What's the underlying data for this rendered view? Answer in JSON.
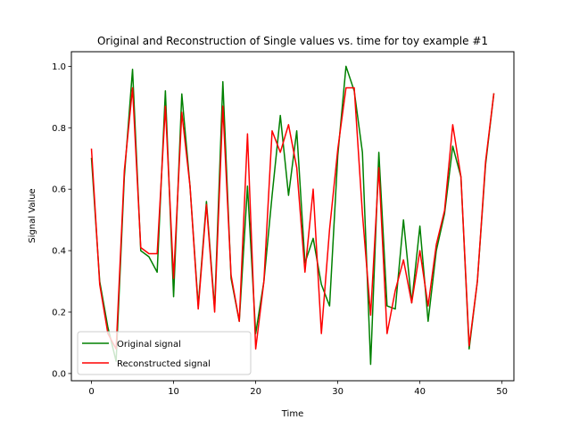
{
  "chart_data": {
    "type": "line",
    "title": "Original and Reconstruction of Single values vs. time for toy example #1",
    "xlabel": "Time",
    "ylabel": "Signal Value",
    "xlim": [
      -2.45,
      51.45
    ],
    "ylim": [
      -0.0235,
      1.0475
    ],
    "x_ticks": [
      0,
      10,
      20,
      30,
      40,
      50
    ],
    "y_ticks": [
      0.0,
      0.2,
      0.4,
      0.6,
      0.8,
      1.0
    ],
    "x_tick_labels": [
      "0",
      "10",
      "20",
      "30",
      "40",
      "50"
    ],
    "y_tick_labels": [
      "0.0",
      "0.2",
      "0.4",
      "0.6",
      "0.8",
      "1.0"
    ],
    "grid": false,
    "legend_position": "lower-left",
    "x": [
      0,
      1,
      2,
      3,
      4,
      5,
      6,
      7,
      8,
      9,
      10,
      11,
      12,
      13,
      14,
      15,
      16,
      17,
      18,
      19,
      20,
      21,
      22,
      23,
      24,
      25,
      26,
      27,
      28,
      29,
      30,
      31,
      32,
      33,
      34,
      35,
      36,
      37,
      38,
      39,
      40,
      41,
      42,
      43,
      44,
      45,
      46,
      47,
      48,
      49
    ],
    "series": [
      {
        "name": "Original signal",
        "color": "#008000",
        "values": [
          0.7,
          0.3,
          0.15,
          0.04,
          0.64,
          0.99,
          0.4,
          0.38,
          0.33,
          0.92,
          0.25,
          0.91,
          0.61,
          0.22,
          0.56,
          0.21,
          0.95,
          0.31,
          0.17,
          0.61,
          0.13,
          0.3,
          0.58,
          0.84,
          0.58,
          0.79,
          0.36,
          0.44,
          0.29,
          0.22,
          0.71,
          1.0,
          0.92,
          0.72,
          0.03,
          0.72,
          0.22,
          0.21,
          0.5,
          0.23,
          0.48,
          0.17,
          0.4,
          0.52,
          0.74,
          0.64,
          0.08,
          0.3,
          0.68,
          0.91
        ]
      },
      {
        "name": "Reconstructed signal",
        "color": "#ff0000",
        "values": [
          0.73,
          0.29,
          0.13,
          0.08,
          0.66,
          0.93,
          0.41,
          0.39,
          0.39,
          0.87,
          0.31,
          0.85,
          0.61,
          0.21,
          0.55,
          0.2,
          0.87,
          0.32,
          0.17,
          0.78,
          0.08,
          0.3,
          0.79,
          0.72,
          0.81,
          0.67,
          0.33,
          0.6,
          0.13,
          0.47,
          0.73,
          0.93,
          0.93,
          0.52,
          0.19,
          0.67,
          0.13,
          0.27,
          0.37,
          0.23,
          0.4,
          0.22,
          0.42,
          0.53,
          0.81,
          0.64,
          0.09,
          0.3,
          0.69,
          0.91
        ]
      }
    ]
  }
}
